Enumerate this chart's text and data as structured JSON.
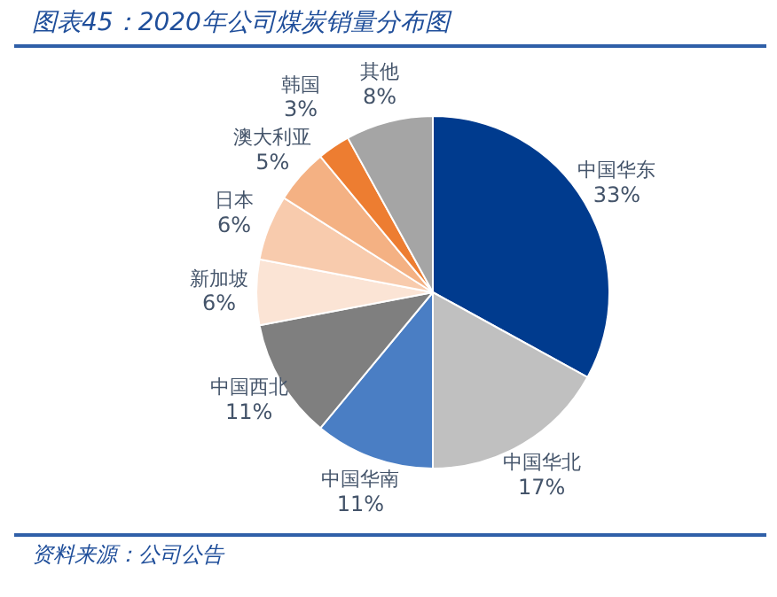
{
  "chart_data": {
    "type": "pie",
    "title": "图表45：2020年公司煤炭销量分布图",
    "categories": [
      "中国华东",
      "中国华北",
      "中国华南",
      "中国西北",
      "新加坡",
      "日本",
      "澳大利亚",
      "韩国",
      "其他"
    ],
    "values": [
      33,
      17,
      11,
      11,
      6,
      6,
      5,
      3,
      8
    ],
    "value_labels": [
      "33%",
      "17%",
      "11%",
      "11%",
      "6%",
      "6%",
      "5%",
      "3%",
      "8%"
    ],
    "colors": [
      "#003b8e",
      "#c0c0c0",
      "#4a7ec4",
      "#7f7f7f",
      "#fbe4d5",
      "#f8cbad",
      "#f4b183",
      "#ed7d31",
      "#a5a5a5"
    ],
    "legend": false,
    "annotations": [
      "资料来源：公司公告"
    ]
  }
}
